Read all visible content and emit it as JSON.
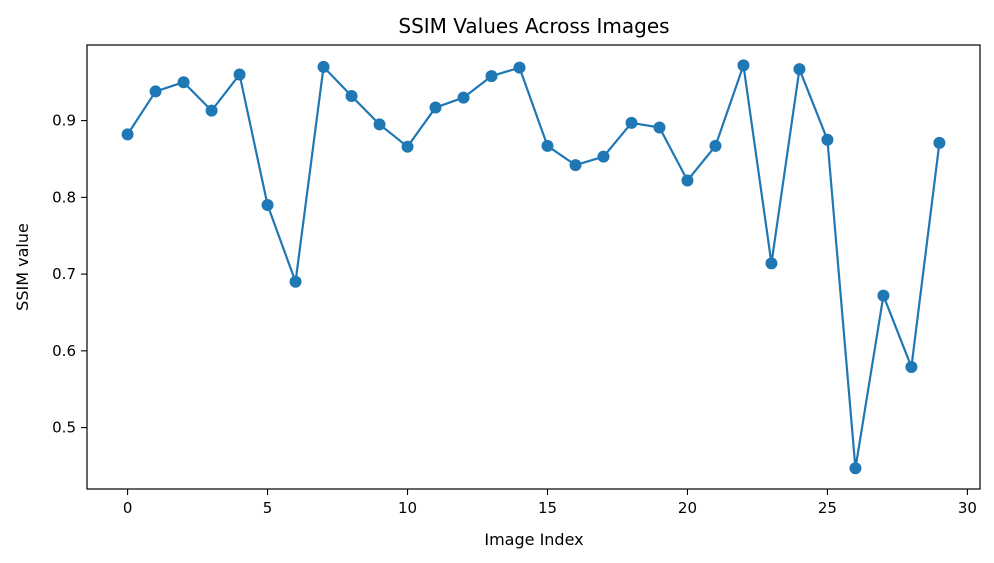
{
  "chart_data": {
    "type": "line",
    "title": "SSIM Values Across Images",
    "xlabel": "Image Index",
    "ylabel": "SSIM value",
    "xlim": [
      -1.45,
      30.45
    ],
    "ylim": [
      0.42,
      0.9985
    ],
    "x_ticks": [
      0,
      5,
      10,
      15,
      20,
      25,
      30
    ],
    "y_ticks": [
      0.5,
      0.6,
      0.7,
      0.8,
      0.9
    ],
    "x_tick_labels": [
      "0",
      "5",
      "10",
      "15",
      "20",
      "25",
      "30"
    ],
    "y_tick_labels": [
      "0.5",
      "0.6",
      "0.7",
      "0.8",
      "0.9"
    ],
    "grid": false,
    "marker": "circle",
    "color": "#1f77b4",
    "x": [
      0,
      1,
      2,
      3,
      4,
      5,
      6,
      7,
      8,
      9,
      10,
      11,
      12,
      13,
      14,
      15,
      16,
      17,
      18,
      19,
      20,
      21,
      22,
      23,
      24,
      25,
      26,
      27,
      28,
      29
    ],
    "values": [
      0.882,
      0.938,
      0.95,
      0.913,
      0.96,
      0.79,
      0.69,
      0.97,
      0.932,
      0.895,
      0.866,
      0.917,
      0.93,
      0.958,
      0.969,
      0.867,
      0.842,
      0.853,
      0.897,
      0.891,
      0.822,
      0.867,
      0.972,
      0.714,
      0.967,
      0.875,
      0.447,
      0.672,
      0.579,
      0.871
    ]
  }
}
